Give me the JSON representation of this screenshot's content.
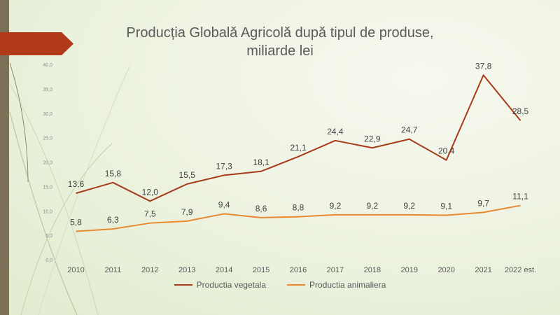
{
  "title_line1": "Producția Globală Agricolă după tipul de produse,",
  "title_line2": "miliarde lei",
  "colors": {
    "vegetal": "#a63c1a",
    "animal": "#e8892f",
    "accent_bar": "#7b7156",
    "tab": "#b03a1a"
  },
  "chart_data": {
    "type": "line",
    "title": "Producția Globală Agricolă după tipul de produse, miliarde lei",
    "categories": [
      "2010",
      "2011",
      "2012",
      "2013",
      "2014",
      "2015",
      "2016",
      "2017",
      "2018",
      "2019",
      "2020",
      "2021",
      "2022 est."
    ],
    "ylim": [
      0,
      40
    ],
    "yticks": [
      "0,0",
      "5,0",
      "10,0",
      "15,0",
      "20,0",
      "25,0",
      "30,0",
      "35,0",
      "40,0"
    ],
    "grid": false,
    "legend_position": "bottom",
    "series": [
      {
        "name": "Productia vegetala",
        "values": [
          13.6,
          15.8,
          12.0,
          15.5,
          17.3,
          18.1,
          21.1,
          24.4,
          22.9,
          24.7,
          20.4,
          37.8,
          28.5
        ],
        "labels": [
          "13,6",
          "15,8",
          "12,0",
          "15,5",
          "17,3",
          "18,1",
          "21,1",
          "24,4",
          "22,9",
          "24,7",
          "20,4",
          "37,8",
          "28,5"
        ]
      },
      {
        "name": "Productia animaliera",
        "values": [
          5.8,
          6.3,
          7.5,
          7.9,
          9.4,
          8.6,
          8.8,
          9.2,
          9.2,
          9.2,
          9.1,
          9.7,
          11.1
        ],
        "labels": [
          "5,8",
          "6,3",
          "7,5",
          "7,9",
          "9,4",
          "8,6",
          "8,8",
          "9,2",
          "9,2",
          "9,2",
          "9,1",
          "9,7",
          "11,1"
        ]
      }
    ]
  }
}
